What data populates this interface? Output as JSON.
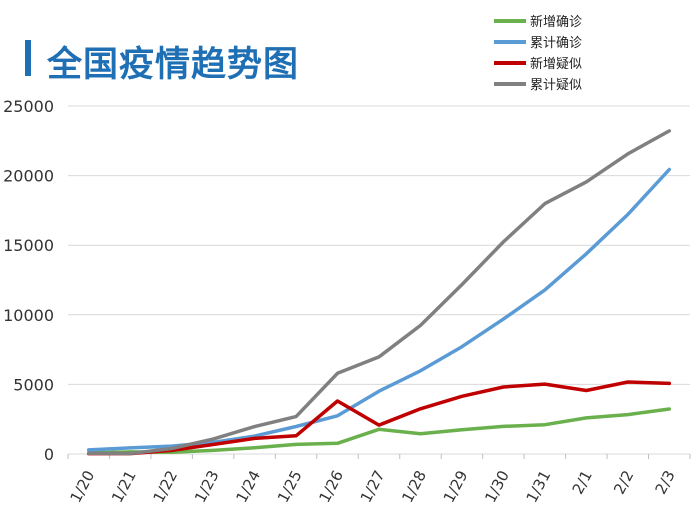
{
  "title": "全国疫情趋势图",
  "chart_data": {
    "type": "line",
    "categories": [
      "1/20",
      "1/21",
      "1/22",
      "1/23",
      "1/24",
      "1/25",
      "1/26",
      "1/27",
      "1/28",
      "1/29",
      "1/30",
      "1/31",
      "2/1",
      "2/2",
      "2/3"
    ],
    "ylim": [
      0,
      25000
    ],
    "yticks": [
      "0",
      "5000",
      "10000",
      "15000",
      "20000",
      "25000"
    ],
    "grid": true,
    "legend_position": "top-right",
    "series": [
      {
        "name": "新增确诊",
        "color": "#6ab04c",
        "values": [
          77,
          149,
          131,
          259,
          444,
          688,
          769,
          1771,
          1459,
          1737,
          1982,
          2102,
          2590,
          2829,
          3235
        ]
      },
      {
        "name": "累计确诊",
        "color": "#5b9bd5",
        "values": [
          291,
          440,
          571,
          830,
          1287,
          1975,
          2744,
          4515,
          5974,
          7711,
          9692,
          11791,
          14380,
          17205,
          20438
        ]
      },
      {
        "name": "新增疑似",
        "color": "#c00000",
        "values": [
          27,
          26,
          257,
          680,
          1118,
          1309,
          3806,
          2077,
          3248,
          4148,
          4812,
          5019,
          4562,
          5173,
          5072
        ]
      },
      {
        "name": "累计疑似",
        "color": "#808080",
        "values": [
          54,
          37,
          393,
          1072,
          1965,
          2684,
          5794,
          6973,
          9239,
          12167,
          15238,
          17988,
          19544,
          21558,
          23214
        ]
      }
    ]
  }
}
